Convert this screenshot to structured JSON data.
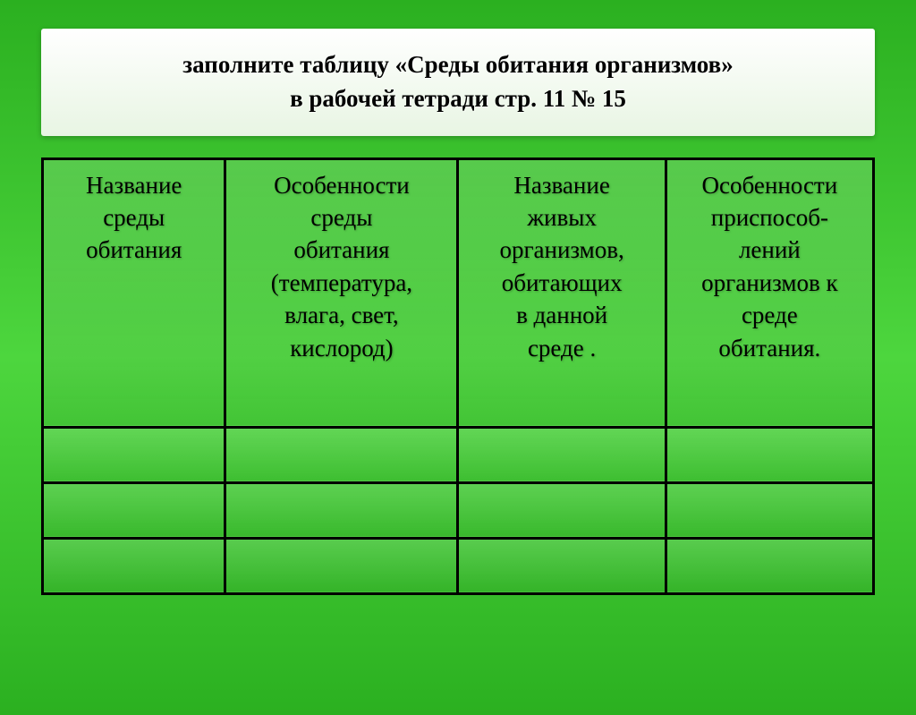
{
  "title": {
    "line1": "заполните таблицу «Среды обитания организмов»",
    "line2": "в рабочей тетради   стр. 11  № 15"
  },
  "table": {
    "columns": [
      {
        "lines": [
          "Название",
          "среды",
          "обитания"
        ]
      },
      {
        "lines": [
          "Особенности",
          "среды",
          "обитания",
          "(температура,",
          "влага, свет,",
          "кислород)"
        ]
      },
      {
        "lines": [
          "Название",
          "живых",
          "организмов,",
          "обитающих",
          "в данной",
          "среде ."
        ]
      },
      {
        "lines": [
          "Особенности",
          "приспособ-",
          "лений",
          "организмов к",
          "среде",
          "обитания."
        ]
      }
    ],
    "rows": [
      [
        "",
        "",
        "",
        ""
      ],
      [
        "",
        "",
        "",
        ""
      ],
      [
        "",
        "",
        "",
        ""
      ]
    ],
    "border_color": "#000000",
    "text_color": "#000000",
    "header_fontsize": 27
  },
  "background": {
    "gradient_start": "#2bb020",
    "gradient_mid": "#4dd63e",
    "gradient_end": "#2bb020"
  },
  "title_box": {
    "bg_start": "#ffffff",
    "bg_end": "#e8f5e3",
    "title_fontsize": 27,
    "title_color": "#000000"
  }
}
